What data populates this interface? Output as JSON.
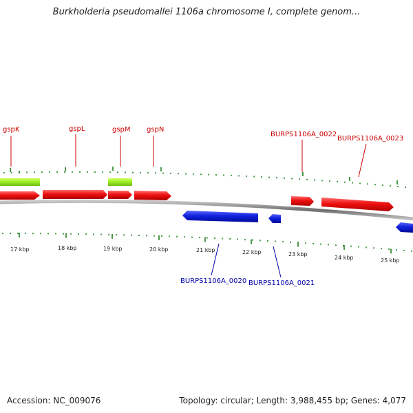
{
  "title": "Burkholderia pseudomallei 1106a chromosome I, complete genom...",
  "footer": {
    "accession": "Accession: NC_009076",
    "summary": "Topology: circular; Length: 3,988,455 bp; Genes: 4,077"
  },
  "colors": {
    "forward_gene": "#ee1111",
    "reverse_gene": "#1122dd",
    "highlight": "#99ee22",
    "backbone": "#8a8a8a",
    "ticks": "#117711",
    "forward_label": "#cc0000",
    "reverse_label": "#0000aa"
  },
  "scale_labels": [
    "17 kbp",
    "18 kbp",
    "19 kbp",
    "20 kbp",
    "21 kbp",
    "22 kbp",
    "23 kbp",
    "24 kbp",
    "25 kbp"
  ],
  "forward_gene_labels": [
    "gspK",
    "gspL",
    "gspM",
    "gspN",
    "BURPS1106A_0022",
    "BURPS1106A_0023"
  ],
  "reverse_gene_labels": [
    "BURPS1106A_0020",
    "BURPS1106A_0021"
  ]
}
